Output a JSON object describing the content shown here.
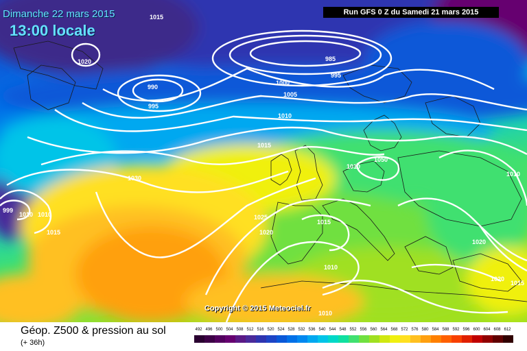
{
  "header": {
    "date": "Dimanche 22 mars 2015",
    "local_time": "13:00 locale",
    "run": "Run GFS 0 Z du Samedi 21 mars 2015"
  },
  "footer": {
    "title": "Géop. Z500 & pression au sol",
    "lead": "(+ 36h)",
    "copyright": "Copyright © 2015 Meteociel.fr"
  },
  "pressure_labels": [
    "1015",
    "1020",
    "990",
    "995",
    "985",
    "995",
    "1000",
    "1005",
    "1010",
    "1015",
    "1010",
    "1030",
    "1050",
    "1010",
    "1025",
    "1015",
    "1020",
    "1015",
    "1010",
    "1020",
    "1020",
    "1015",
    "1010",
    "999",
    "1010",
    "1010"
  ],
  "colors": {
    "z492": "#2a0030",
    "z496": "#3d0046",
    "z500": "#52005e",
    "z504": "#660070",
    "z508": "#5a1a86",
    "z512": "#4a2a9a",
    "z516": "#2e34b0",
    "z520": "#1d44c6",
    "z524": "#0a58d8",
    "z528": "#0070e8",
    "z532": "#0088f0",
    "z536": "#00a8f0",
    "z540": "#00c4e8",
    "z544": "#00d8c8",
    "z548": "#10e0a0",
    "z552": "#40e070",
    "z556": "#70e040",
    "z560": "#a0e020",
    "z564": "#d0e810",
    "z568": "#f0f010",
    "z572": "#ffe020",
    "z576": "#ffc020",
    "z580": "#ffa010",
    "z584": "#ff8000",
    "z588": "#ff6000",
    "z592": "#f84000",
    "z596": "#e02000",
    "z600": "#c00000",
    "z604": "#900000",
    "z608": "#600000",
    "z612": "#300000"
  },
  "scale_values": [
    "492",
    "496",
    "500",
    "504",
    "508",
    "512",
    "516",
    "520",
    "524",
    "528",
    "532",
    "536",
    "540",
    "544",
    "548",
    "552",
    "556",
    "560",
    "564",
    "568",
    "572",
    "576",
    "580",
    "584",
    "588",
    "592",
    "596",
    "600",
    "604",
    "608",
    "612"
  ]
}
